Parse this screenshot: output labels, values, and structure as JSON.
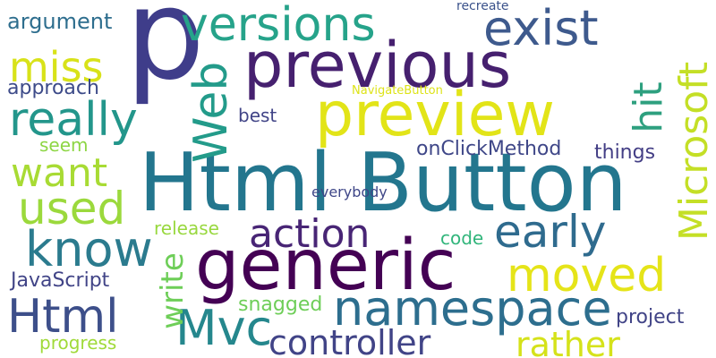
{
  "words": [
    {
      "text": "p"
    },
    {
      "text": "Html Button"
    },
    {
      "text": "generic"
    },
    {
      "text": "previous"
    },
    {
      "text": "preview"
    },
    {
      "text": "versions"
    },
    {
      "text": "namespace"
    },
    {
      "text": "Microsoft"
    },
    {
      "text": "Web"
    },
    {
      "text": "Mvc"
    },
    {
      "text": "Html"
    },
    {
      "text": "exist"
    },
    {
      "text": "really"
    },
    {
      "text": "know"
    },
    {
      "text": "early"
    },
    {
      "text": "moved"
    },
    {
      "text": "action"
    },
    {
      "text": "used"
    },
    {
      "text": "want"
    },
    {
      "text": "miss"
    },
    {
      "text": "hit"
    },
    {
      "text": "controller"
    },
    {
      "text": "rather"
    },
    {
      "text": "write"
    },
    {
      "text": "argument"
    },
    {
      "text": "approach"
    },
    {
      "text": "best"
    },
    {
      "text": "seem"
    },
    {
      "text": "onClickMethod"
    },
    {
      "text": "things"
    },
    {
      "text": "everybody"
    },
    {
      "text": "release"
    },
    {
      "text": "code"
    },
    {
      "text": "JavaScript"
    },
    {
      "text": "snagged"
    },
    {
      "text": "project"
    },
    {
      "text": "progress"
    },
    {
      "text": "recreate"
    },
    {
      "text": "NavigateButton"
    }
  ],
  "colors": {
    "background": "#ffffff",
    "palette": [
      "#440154",
      "#482878",
      "#3e4a89",
      "#31688e",
      "#26828e",
      "#1f9e89",
      "#35b779",
      "#6ece58",
      "#b5de2b",
      "#fde725"
    ]
  }
}
